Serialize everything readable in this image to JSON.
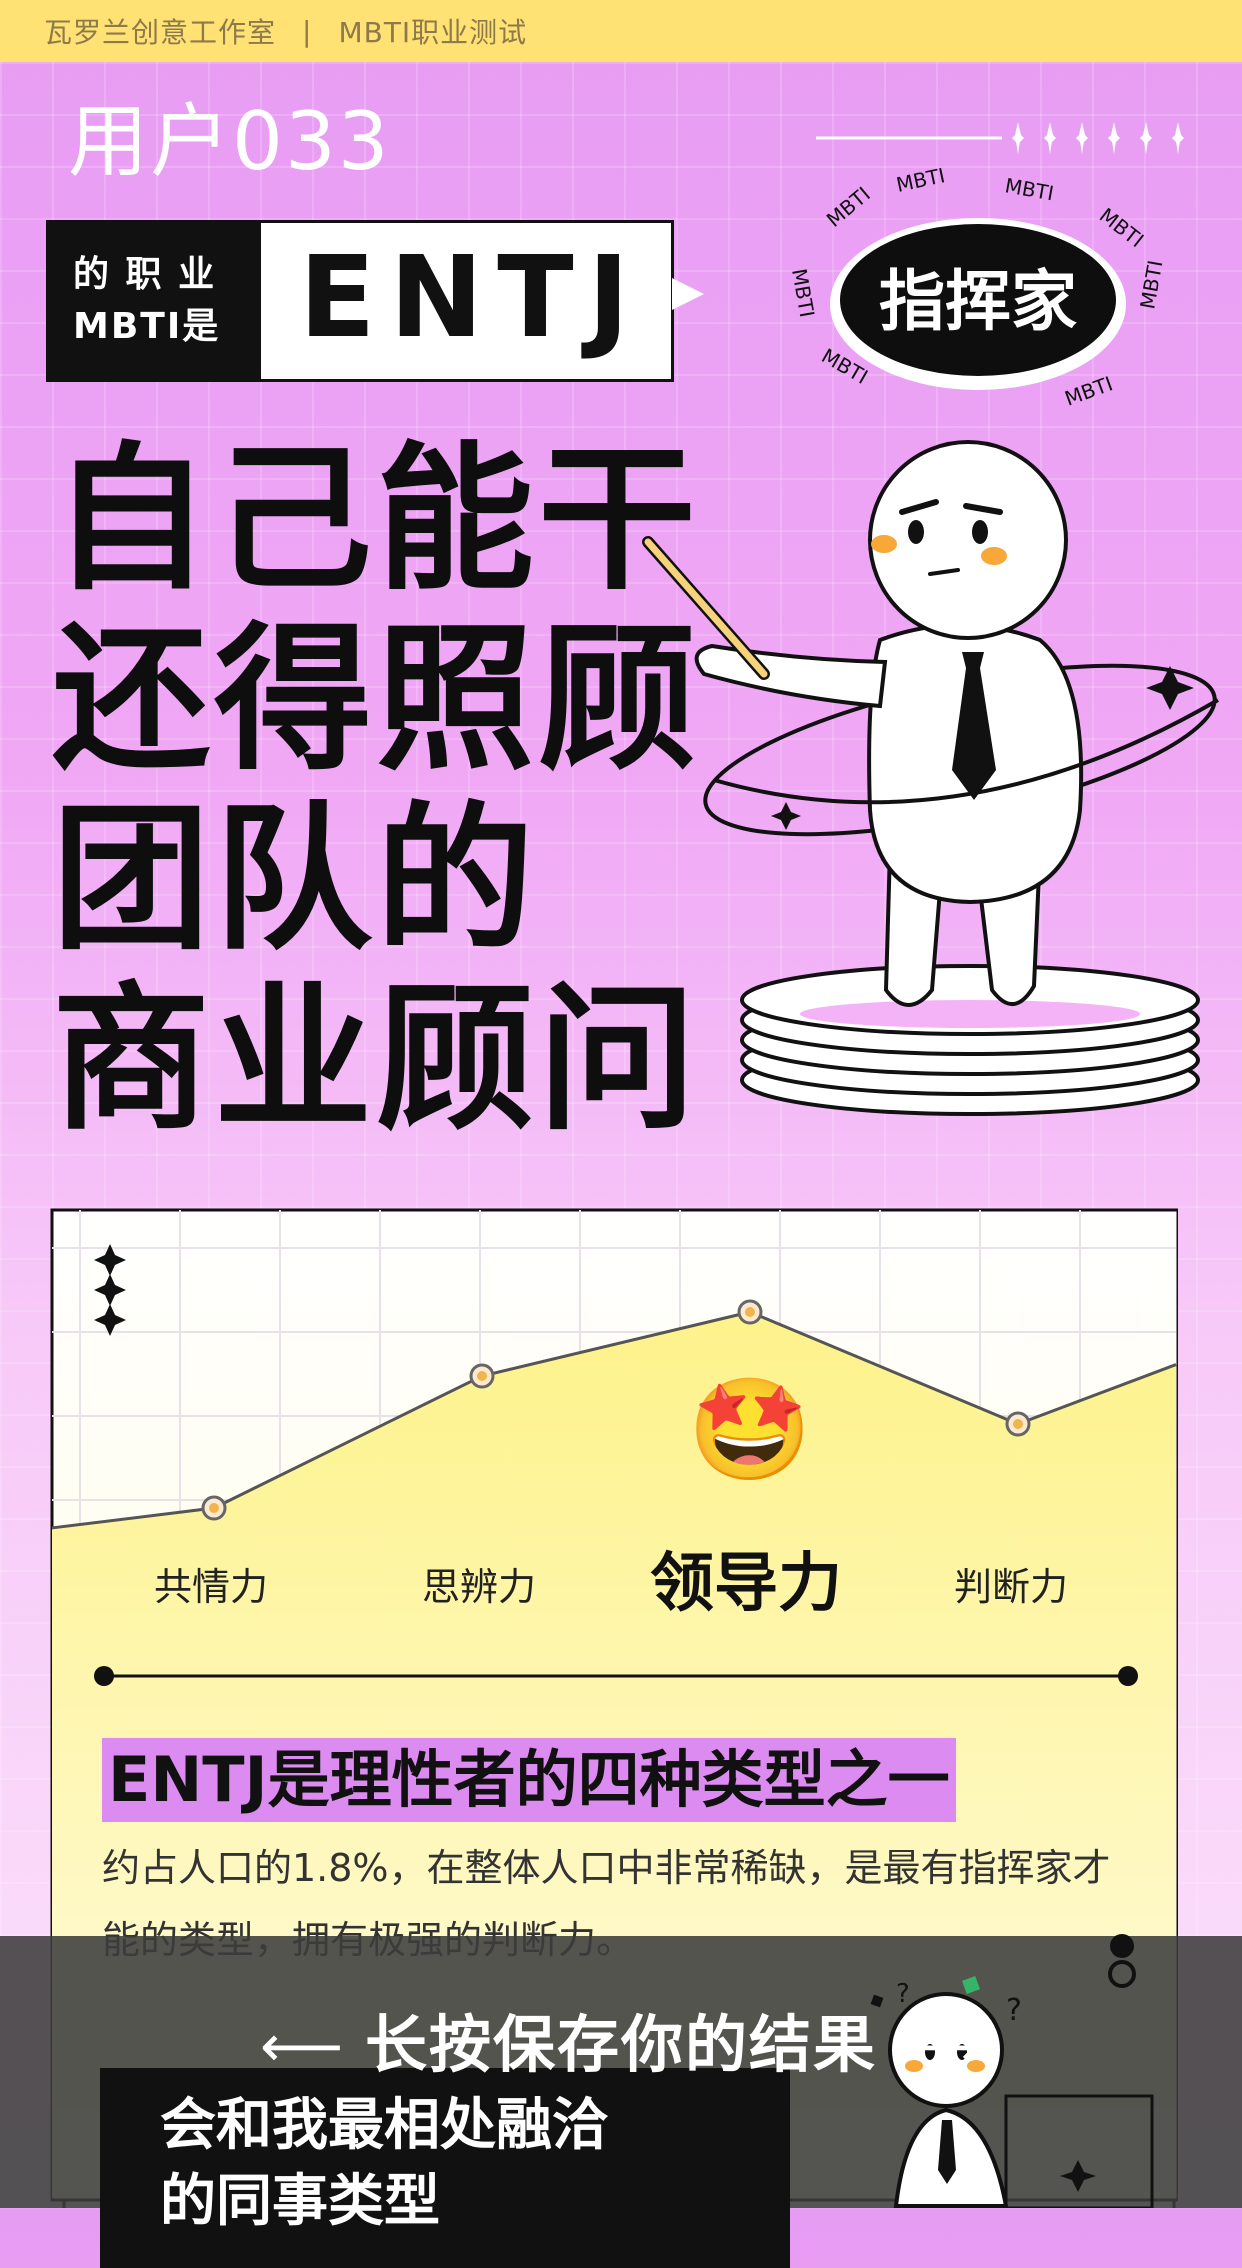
{
  "header": {
    "brand": "瓦罗兰创意工作室",
    "separator": "|",
    "test_name": "MBTI职业测试"
  },
  "user": {
    "name": "用户033"
  },
  "result": {
    "prefix_line1": "的 职 业",
    "prefix_line2": "MBTI是",
    "type": "ENTJ",
    "nickname": "指挥家",
    "badge_ring_text": "MBTI"
  },
  "headline": {
    "lines": [
      "自己能干",
      "还得照顾",
      "团队的",
      "商业顾问"
    ]
  },
  "chart_data": {
    "type": "area",
    "categories": [
      "共情力",
      "思辨力",
      "领导力",
      "判断力"
    ],
    "values": [
      35,
      68,
      84,
      56
    ],
    "highlight": "领导力",
    "highlight_emoji": "🤩",
    "grid": true,
    "ylim": [
      0,
      100
    ]
  },
  "summary": {
    "title": "ENTJ是理性者的四种类型之一",
    "description": "约占人口的1.8%，在整体人口中非常稀缺，是最有指挥家才能的类型，拥有极强的判断力。"
  },
  "save_prompt": {
    "left_arrow": "⟵",
    "label": "长按保存你的结果",
    "right_arrow": "⟶"
  },
  "next_section": {
    "title_line1": "会和我最相处融洽",
    "title_line2": "的同事类型"
  },
  "colors": {
    "topbar": "#ffe174",
    "background": "#e79cf3",
    "highlight_bar": "#dc8cf0",
    "accent_orange": "#f7b91f"
  }
}
